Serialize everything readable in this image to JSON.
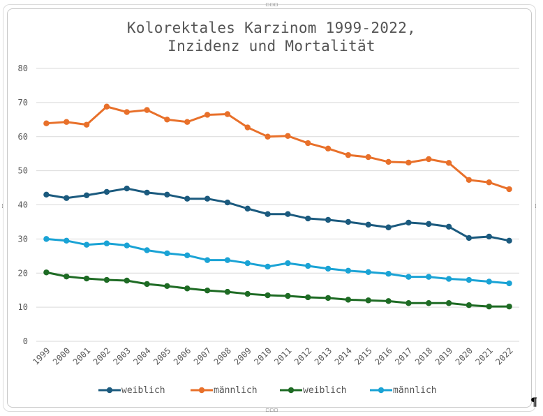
{
  "chart_data": {
    "type": "line",
    "title": "Kolorektales Karzinom 1999-2022,",
    "subtitle": "Inzidenz und Mortalität",
    "xlabel": "",
    "ylabel": "",
    "ylim": [
      0,
      80
    ],
    "yticks": [
      0,
      10,
      20,
      30,
      40,
      50,
      60,
      70,
      80
    ],
    "grid": true,
    "legend_position": "bottom",
    "categories": [
      "1999",
      "2000",
      "2001",
      "2002",
      "2003",
      "2004",
      "2005",
      "2006",
      "2007",
      "2008",
      "2009",
      "2010",
      "2011",
      "2012",
      "2013",
      "2014",
      "2015",
      "2016",
      "2017",
      "2018",
      "2019",
      "2020",
      "2021",
      "2022"
    ],
    "series": [
      {
        "name": "weiblich",
        "color": "#1b5a7e",
        "values": [
          43.0,
          42.0,
          42.8,
          43.8,
          44.8,
          43.6,
          43.0,
          41.8,
          41.8,
          40.7,
          38.9,
          37.3,
          37.3,
          36.0,
          35.6,
          35.0,
          34.2,
          33.4,
          34.8,
          34.4,
          33.6,
          30.3,
          30.7,
          29.5
        ]
      },
      {
        "name": "männlich",
        "color": "#e8702a",
        "values": [
          63.9,
          64.3,
          63.5,
          68.8,
          67.2,
          67.8,
          65.0,
          64.3,
          66.4,
          66.6,
          62.7,
          60.0,
          60.2,
          58.1,
          56.5,
          54.6,
          54.0,
          52.6,
          52.4,
          53.4,
          52.3,
          47.3,
          46.6,
          44.6
        ]
      },
      {
        "name": "weiblich",
        "color": "#1e6b24",
        "values": [
          20.2,
          19.0,
          18.4,
          18.0,
          17.8,
          16.8,
          16.2,
          15.5,
          14.9,
          14.5,
          13.9,
          13.5,
          13.3,
          12.9,
          12.7,
          12.2,
          12.0,
          11.8,
          11.2,
          11.2,
          11.2,
          10.6,
          10.2,
          10.2
        ]
      },
      {
        "name": "männlich",
        "color": "#1aa3d5",
        "values": [
          30.0,
          29.5,
          28.3,
          28.7,
          28.1,
          26.7,
          25.8,
          25.2,
          23.8,
          23.8,
          22.9,
          21.9,
          22.9,
          22.1,
          21.3,
          20.7,
          20.3,
          19.8,
          18.9,
          18.9,
          18.3,
          18.0,
          17.5,
          17.0
        ]
      }
    ]
  },
  "colors": {
    "grid": "#d9d9d9",
    "axis_text": "#595959",
    "title_text": "#555555"
  }
}
